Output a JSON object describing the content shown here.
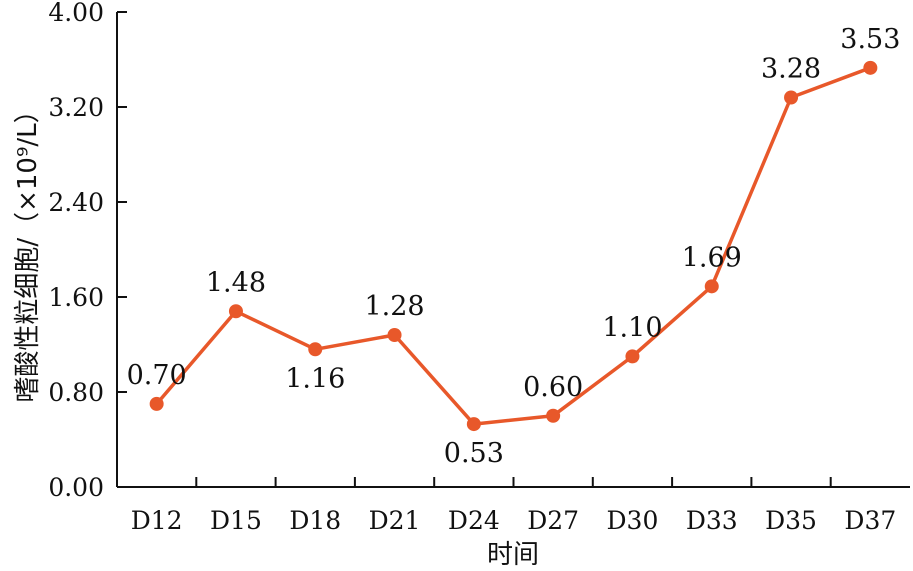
{
  "chart_data": {
    "type": "line",
    "title": "",
    "xlabel": "时间",
    "ylabel": "嗜酸性粒细胞/（×10⁹/L）",
    "categories": [
      "D12",
      "D15",
      "D18",
      "D21",
      "D24",
      "D27",
      "D30",
      "D33",
      "D35",
      "D37"
    ],
    "series": [
      {
        "values": [
          0.7,
          1.48,
          1.16,
          1.28,
          0.53,
          0.6,
          1.1,
          1.69,
          3.28,
          3.53
        ],
        "data_labels": [
          "0.70",
          "1.48",
          "1.16",
          "1.28",
          "0.53",
          "0.60",
          "1.10",
          "1.69",
          "3.28",
          "3.53"
        ]
      }
    ],
    "ylim": [
      0,
      4.0
    ],
    "yticks": [
      0,
      0.8,
      1.6,
      2.4,
      3.2,
      4.0
    ],
    "ytick_labels": [
      "0.00",
      "0.80",
      "1.60",
      "2.40",
      "3.20",
      "4.00"
    ],
    "grid": false,
    "legend": "none",
    "colors": {
      "series": "#e8582a",
      "axis": "#111111"
    }
  }
}
